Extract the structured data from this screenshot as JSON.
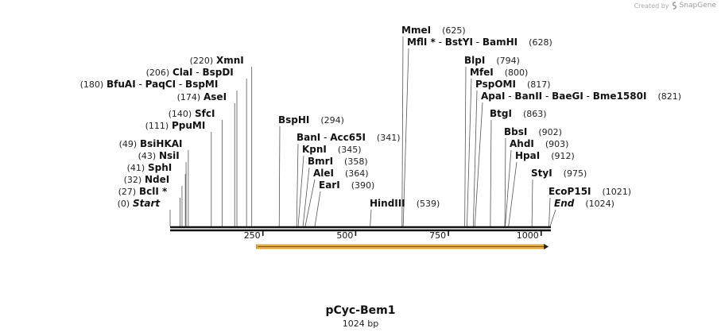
{
  "brand": {
    "prefix": "Created by",
    "name": "SnapGene"
  },
  "plasmid": {
    "name": "pCyc-Bem1",
    "size_label": "1024 bp",
    "length": 1024
  },
  "axis_ticks": [
    {
      "label": "250",
      "value": 250
    },
    {
      "label": "500",
      "value": 500
    },
    {
      "label": "750",
      "value": 750
    },
    {
      "label": "1000",
      "value": 1000
    }
  ],
  "feature": {
    "name": "orf-arrow",
    "start": 215,
    "end": 1020,
    "color": "#f0b43c",
    "direction": "forward"
  },
  "sites": [
    {
      "id": "start",
      "pos": 0,
      "labels": [
        "Start"
      ],
      "pos_label": "(0)",
      "italic": true
    },
    {
      "id": "bcli",
      "pos": 27,
      "labels": [
        "BclI *"
      ],
      "pos_label": "(27)"
    },
    {
      "id": "ndei",
      "pos": 32,
      "labels": [
        "NdeI"
      ],
      "pos_label": "(32)"
    },
    {
      "id": "sphi",
      "pos": 41,
      "labels": [
        "SphI"
      ],
      "pos_label": "(41)"
    },
    {
      "id": "nsii",
      "pos": 43,
      "labels": [
        "NsiI"
      ],
      "pos_label": "(43)"
    },
    {
      "id": "bsihkai",
      "pos": 49,
      "labels": [
        "BsiHKAI"
      ],
      "pos_label": "(49)"
    },
    {
      "id": "ppumi",
      "pos": 111,
      "labels": [
        "PpuMI"
      ],
      "pos_label": "(111)"
    },
    {
      "id": "sfci",
      "pos": 140,
      "labels": [
        "SfcI"
      ],
      "pos_label": "(140)"
    },
    {
      "id": "asei",
      "pos": 174,
      "labels": [
        "AseI"
      ],
      "pos_label": "(174)"
    },
    {
      "id": "bfuai",
      "pos": 180,
      "labels": [
        "BfuAI",
        "PaqCI",
        "BspMI"
      ],
      "pos_label": "(180)"
    },
    {
      "id": "clai",
      "pos": 206,
      "labels": [
        "ClaI",
        "BspDI"
      ],
      "pos_label": "(206)"
    },
    {
      "id": "xmni",
      "pos": 220,
      "labels": [
        "XmnI"
      ],
      "pos_label": "(220)"
    },
    {
      "id": "bsphi",
      "pos": 294,
      "labels": [
        "BspHI"
      ],
      "pos_label": "(294)"
    },
    {
      "id": "bani",
      "pos": 341,
      "labels": [
        "BanI",
        "Acc65I"
      ],
      "pos_label": "(341)"
    },
    {
      "id": "kpni",
      "pos": 345,
      "labels": [
        "KpnI"
      ],
      "pos_label": "(345)"
    },
    {
      "id": "bmri",
      "pos": 358,
      "labels": [
        "BmrI"
      ],
      "pos_label": "(358)"
    },
    {
      "id": "alei",
      "pos": 364,
      "labels": [
        "AleI"
      ],
      "pos_label": "(364)"
    },
    {
      "id": "eari",
      "pos": 390,
      "labels": [
        "EarI"
      ],
      "pos_label": "(390)"
    },
    {
      "id": "hindiii",
      "pos": 539,
      "labels": [
        "HindIII"
      ],
      "pos_label": "(539)"
    },
    {
      "id": "mmei",
      "pos": 625,
      "labels": [
        "MmeI"
      ],
      "pos_label": "(625)"
    },
    {
      "id": "mfli",
      "pos": 628,
      "labels": [
        "MflI *",
        "BstYI",
        "BamHI"
      ],
      "pos_label": "(628)"
    },
    {
      "id": "blpi",
      "pos": 794,
      "labels": [
        "BlpI"
      ],
      "pos_label": "(794)"
    },
    {
      "id": "mfei",
      "pos": 800,
      "labels": [
        "MfeI"
      ],
      "pos_label": "(800)"
    },
    {
      "id": "pspomi",
      "pos": 817,
      "labels": [
        "PspOMI"
      ],
      "pos_label": "(817)"
    },
    {
      "id": "apai",
      "pos": 821,
      "labels": [
        "ApaI",
        "BanII",
        "BaeGI",
        "Bme1580I"
      ],
      "pos_label": "(821)"
    },
    {
      "id": "btgi",
      "pos": 863,
      "labels": [
        "BtgI"
      ],
      "pos_label": "(863)"
    },
    {
      "id": "bbsi",
      "pos": 902,
      "labels": [
        "BbsI"
      ],
      "pos_label": "(902)"
    },
    {
      "id": "ahdi",
      "pos": 903,
      "labels": [
        "AhdI"
      ],
      "pos_label": "(903)"
    },
    {
      "id": "hpai",
      "pos": 912,
      "labels": [
        "HpaI"
      ],
      "pos_label": "(912)"
    },
    {
      "id": "styi",
      "pos": 975,
      "labels": [
        "StyI"
      ],
      "pos_label": "(975)"
    },
    {
      "id": "ecop15i",
      "pos": 1021,
      "labels": [
        "EcoP15I"
      ],
      "pos_label": "(1021)"
    },
    {
      "id": "end",
      "pos": 1024,
      "labels": [
        "End"
      ],
      "pos_label": "(1024)",
      "italic": true
    }
  ]
}
